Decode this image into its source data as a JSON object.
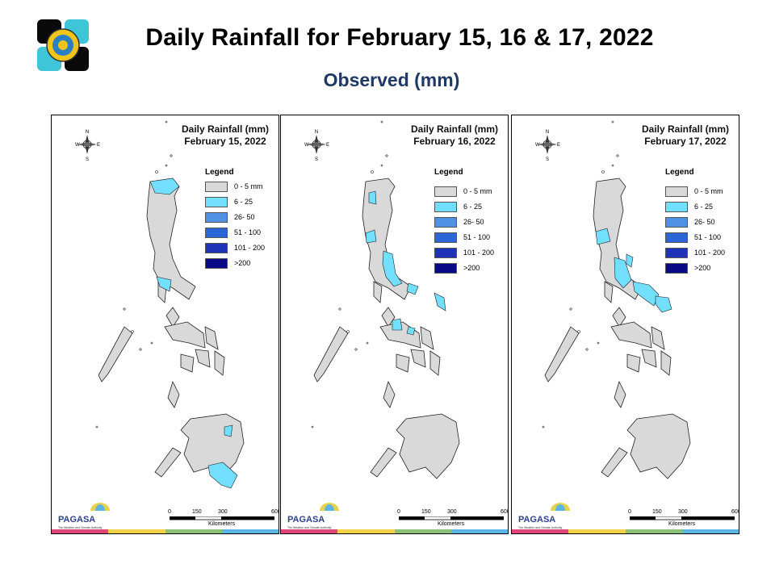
{
  "header": {
    "title": "Daily Rainfall for February 15, 16 & 17, 2022",
    "subtitle": "Observed (mm)"
  },
  "legend": {
    "title": "Legend",
    "items": [
      {
        "label": "0 - 5 mm",
        "color": "#d9d9d9"
      },
      {
        "label": "6 - 25",
        "color": "#73dfff"
      },
      {
        "label": "26- 50",
        "color": "#4f92e3"
      },
      {
        "label": "51 - 100",
        "color": "#2b66d6"
      },
      {
        "label": "101 - 200",
        "color": "#1f33b8"
      },
      {
        "label": ">200",
        "color": "#0a0a86"
      }
    ]
  },
  "panels": [
    {
      "title_line1": "Daily Rainfall (mm)",
      "title_line2": "February 15, 2022"
    },
    {
      "title_line1": "Daily Rainfall (mm)",
      "title_line2": "February 16, 2022"
    },
    {
      "title_line1": "Daily Rainfall (mm)",
      "title_line2": "February 17, 2022"
    }
  ],
  "scale": {
    "ticks": [
      "0",
      "150",
      "300",
      "600"
    ],
    "unit": "Kilometers"
  },
  "compass": {
    "n": "N",
    "s": "S",
    "e": "E",
    "w": "W"
  },
  "branding": {
    "name": "PAGASA",
    "tagline": "The Weather and Climate Authority"
  },
  "colors": {
    "strip": [
      "#e0457b",
      "#f2d24b",
      "#8cc276",
      "#5bb6e6"
    ]
  }
}
